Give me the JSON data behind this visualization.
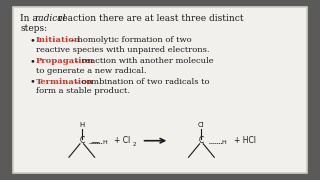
{
  "bg_outer": "#5a5a5a",
  "bg_slide": "#f2f0ec",
  "border_color": "#d0ccc4",
  "text_color": "#1a1a1a",
  "red_color": "#c0392b",
  "bullets": [
    {
      "term": "Initiation",
      "desc": " – homolytic formation of two reactive species with unpaired electrons."
    },
    {
      "term": "Propagation",
      "desc": " – reaction with another molecule to generate a new radical."
    },
    {
      "term": "Termination",
      "desc": " – combination of two radicals to form a stable product."
    }
  ]
}
